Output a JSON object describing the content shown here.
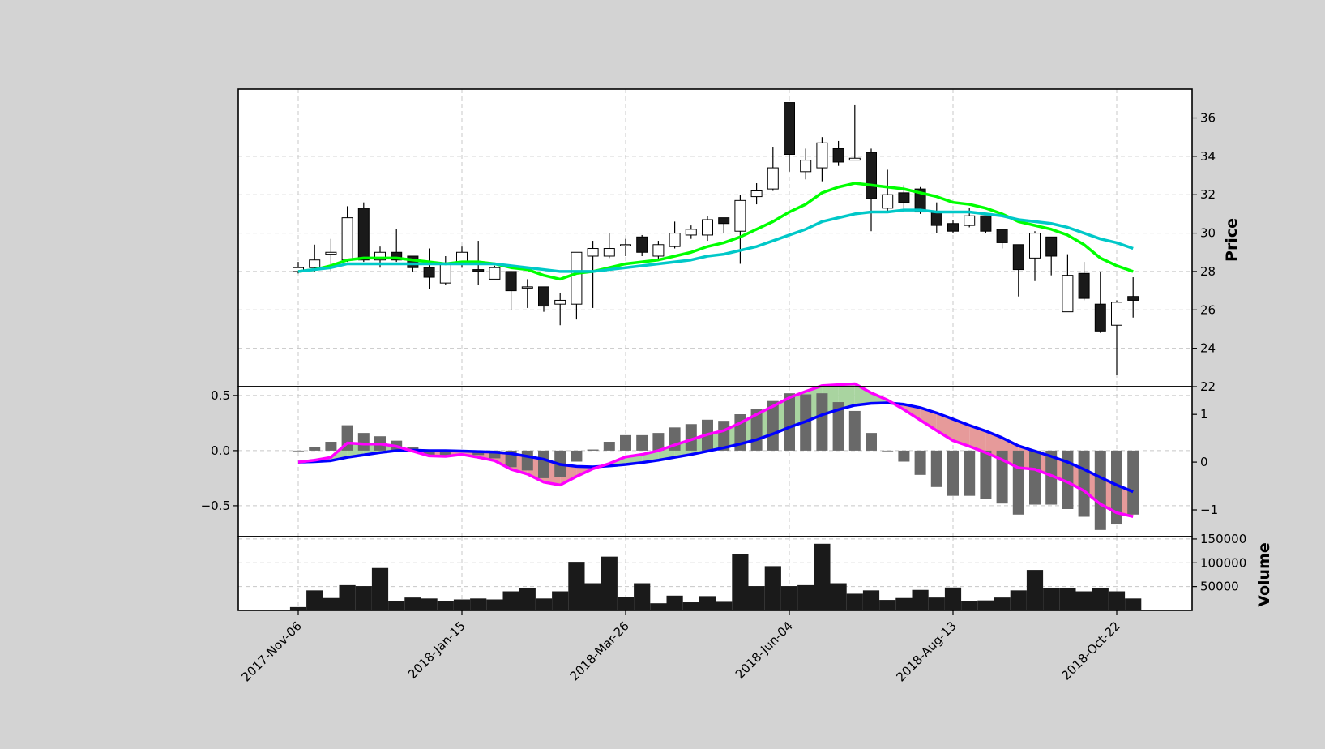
{
  "chart_data": {
    "type": "candlestick",
    "x_tick_labels": [
      "2017-Nov-06",
      "2018-Jan-15",
      "2018-Mar-26",
      "2018-Jun-04",
      "2018-Aug-13",
      "2018-Oct-22"
    ],
    "price_panel": {
      "ylabel": "Price",
      "ylim": [
        22,
        37.5
      ],
      "yticks": [
        "22",
        "24",
        "26",
        "28",
        "30",
        "32",
        "34",
        "36"
      ],
      "grid": true,
      "candles": [
        [
          28.0,
          28.2,
          28.5,
          27.9
        ],
        [
          28.2,
          28.6,
          29.4,
          28.0
        ],
        [
          28.9,
          29.0,
          29.7,
          28.0
        ],
        [
          28.6,
          30.8,
          31.4,
          28.5
        ],
        [
          31.3,
          28.6,
          31.6,
          28.5
        ],
        [
          28.6,
          29.0,
          29.3,
          28.2
        ],
        [
          29.0,
          28.6,
          30.2,
          28.5
        ],
        [
          28.8,
          28.2,
          28.8,
          28.0
        ],
        [
          28.2,
          27.7,
          29.2,
          27.1
        ],
        [
          27.4,
          28.4,
          28.8,
          27.3
        ],
        [
          28.4,
          29.0,
          29.3,
          28.2
        ],
        [
          28.1,
          28.0,
          29.6,
          27.3
        ],
        [
          27.6,
          28.2,
          28.3,
          27.6
        ],
        [
          28.0,
          27.0,
          28.0,
          26.0
        ],
        [
          27.2,
          27.2,
          27.6,
          26.1
        ],
        [
          27.2,
          26.2,
          27.2,
          25.9
        ],
        [
          26.3,
          26.5,
          26.9,
          25.2
        ],
        [
          26.3,
          29.0,
          29.0,
          25.5
        ],
        [
          28.8,
          29.2,
          29.6,
          26.1
        ],
        [
          28.8,
          29.2,
          30.0,
          28.7
        ],
        [
          29.4,
          29.4,
          29.7,
          28.8
        ],
        [
          29.8,
          29.0,
          29.9,
          28.8
        ],
        [
          28.8,
          29.4,
          29.6,
          28.6
        ],
        [
          29.3,
          30.0,
          30.6,
          29.2
        ],
        [
          29.9,
          30.2,
          30.4,
          29.7
        ],
        [
          29.9,
          30.7,
          30.9,
          29.6
        ],
        [
          30.8,
          30.5,
          30.8,
          30.0
        ],
        [
          30.1,
          31.7,
          32.0,
          28.4
        ],
        [
          31.9,
          32.2,
          32.6,
          31.5
        ],
        [
          32.3,
          33.4,
          34.5,
          32.2
        ],
        [
          36.8,
          34.1,
          36.8,
          33.2
        ],
        [
          33.2,
          33.8,
          34.4,
          32.8
        ],
        [
          33.4,
          34.7,
          35.0,
          32.7
        ],
        [
          34.4,
          33.7,
          34.8,
          33.5
        ],
        [
          33.8,
          33.9,
          36.7,
          33.8
        ],
        [
          34.2,
          31.8,
          34.4,
          30.1
        ],
        [
          31.3,
          32.0,
          33.3,
          31.1
        ],
        [
          32.1,
          31.6,
          32.5,
          31.1
        ],
        [
          32.3,
          31.1,
          32.4,
          31.0
        ],
        [
          31.1,
          30.4,
          31.6,
          30.0
        ],
        [
          30.5,
          30.1,
          30.7,
          30.0
        ],
        [
          30.4,
          30.9,
          31.3,
          30.3
        ],
        [
          30.9,
          30.1,
          30.9,
          30.0
        ],
        [
          30.2,
          29.5,
          30.2,
          29.2
        ],
        [
          29.4,
          28.1,
          29.4,
          26.7
        ],
        [
          28.7,
          30.0,
          30.1,
          27.5
        ],
        [
          29.8,
          28.8,
          29.8,
          27.8
        ],
        [
          25.9,
          27.8,
          28.9,
          25.9
        ],
        [
          27.9,
          26.6,
          28.5,
          26.5
        ],
        [
          26.3,
          24.9,
          28.0,
          24.8
        ],
        [
          25.2,
          26.4,
          26.5,
          22.6
        ],
        [
          26.7,
          26.5,
          27.7,
          25.6
        ]
      ],
      "ma_green": [
        28.0,
        28.1,
        28.3,
        28.6,
        28.7,
        28.7,
        28.7,
        28.6,
        28.5,
        28.4,
        28.5,
        28.5,
        28.4,
        28.2,
        28.1,
        27.8,
        27.6,
        27.9,
        28.0,
        28.2,
        28.4,
        28.5,
        28.6,
        28.8,
        29.0,
        29.3,
        29.5,
        29.8,
        30.2,
        30.6,
        31.1,
        31.5,
        32.1,
        32.4,
        32.6,
        32.5,
        32.4,
        32.3,
        32.1,
        31.9,
        31.6,
        31.5,
        31.3,
        31.0,
        30.6,
        30.4,
        30.2,
        29.9,
        29.4,
        28.7,
        28.3,
        28.0
      ],
      "ma_cyan": [
        28.0,
        28.1,
        28.2,
        28.4,
        28.4,
        28.4,
        28.4,
        28.4,
        28.4,
        28.4,
        28.4,
        28.4,
        28.4,
        28.3,
        28.2,
        28.1,
        28.0,
        28.0,
        28.0,
        28.1,
        28.2,
        28.3,
        28.4,
        28.5,
        28.6,
        28.8,
        28.9,
        29.1,
        29.3,
        29.6,
        29.9,
        30.2,
        30.6,
        30.8,
        31.0,
        31.1,
        31.1,
        31.2,
        31.2,
        31.1,
        31.1,
        31.1,
        31.0,
        30.9,
        30.7,
        30.6,
        30.5,
        30.3,
        30.0,
        29.7,
        29.5,
        29.2
      ],
      "colors": {
        "up_body": "#ffffff",
        "down_body": "#1a1a1a",
        "ma_green": "#00ff00",
        "ma_cyan": "#00c8c8"
      }
    },
    "macd_panel": {
      "left_ylim": [
        -0.78,
        0.58
      ],
      "left_yticks": [
        {
          "v": 0.5,
          "label": "0.5"
        },
        {
          "v": 0.0,
          "label": "0.0"
        },
        {
          "v": -0.5,
          "label": "−0.5"
        }
      ],
      "right_ylim": [
        -1.56,
        1.58
      ],
      "right_yticks": [
        {
          "v": 1,
          "label": "1"
        },
        {
          "v": 0,
          "label": "0"
        },
        {
          "v": -1,
          "label": "−1"
        }
      ],
      "histogram": [
        0.0,
        0.03,
        0.08,
        0.23,
        0.16,
        0.13,
        0.09,
        0.03,
        -0.05,
        -0.05,
        0.0,
        -0.04,
        -0.07,
        -0.15,
        -0.18,
        -0.25,
        -0.24,
        -0.1,
        0.01,
        0.08,
        0.14,
        0.14,
        0.16,
        0.21,
        0.24,
        0.28,
        0.27,
        0.33,
        0.38,
        0.45,
        0.52,
        0.51,
        0.52,
        0.44,
        0.36,
        0.16,
        0.0,
        -0.1,
        -0.22,
        -0.33,
        -0.41,
        -0.41,
        -0.44,
        -0.48,
        -0.58,
        -0.49,
        -0.49,
        -0.53,
        -0.6,
        -0.72,
        -0.67,
        -0.58
      ],
      "macd_line": [
        0.0,
        0.04,
        0.1,
        0.4,
        0.38,
        0.38,
        0.33,
        0.23,
        0.13,
        0.12,
        0.16,
        0.1,
        0.03,
        -0.15,
        -0.25,
        -0.42,
        -0.48,
        -0.3,
        -0.14,
        -0.03,
        0.11,
        0.16,
        0.24,
        0.36,
        0.47,
        0.58,
        0.66,
        0.82,
        1.0,
        1.17,
        1.35,
        1.48,
        1.6,
        1.62,
        1.64,
        1.45,
        1.3,
        1.1,
        0.88,
        0.66,
        0.45,
        0.33,
        0.2,
        0.05,
        -0.12,
        -0.15,
        -0.28,
        -0.42,
        -0.6,
        -0.88,
        -1.06,
        -1.14
      ],
      "signal_line": [
        0.0,
        0.01,
        0.03,
        0.1,
        0.15,
        0.2,
        0.24,
        0.25,
        0.24,
        0.24,
        0.23,
        0.22,
        0.21,
        0.18,
        0.12,
        0.06,
        -0.05,
        -0.09,
        -0.1,
        -0.08,
        -0.05,
        -0.01,
        0.04,
        0.1,
        0.16,
        0.23,
        0.3,
        0.38,
        0.47,
        0.59,
        0.73,
        0.85,
        0.99,
        1.1,
        1.19,
        1.23,
        1.24,
        1.21,
        1.14,
        1.03,
        0.9,
        0.77,
        0.65,
        0.51,
        0.34,
        0.23,
        0.12,
        0.0,
        -0.15,
        -0.32,
        -0.48,
        -0.62
      ],
      "colors": {
        "macd": "#ff00ff",
        "signal": "#0000ff",
        "hist": "#696969",
        "fill_pos": "#a9d4a0",
        "fill_neg": "#e69a9a"
      }
    },
    "volume_panel": {
      "ylabel": "Volume",
      "ylim": [
        0,
        155000
      ],
      "yticks": [
        {
          "v": 50000,
          "label": "50000"
        },
        {
          "v": 100000,
          "label": "100000"
        },
        {
          "v": 150000,
          "label": "150000"
        }
      ],
      "values": [
        7000,
        42000,
        26000,
        53000,
        51000,
        89000,
        20000,
        27000,
        25000,
        19000,
        23000,
        25000,
        23000,
        40000,
        46000,
        25000,
        40000,
        102000,
        57000,
        113000,
        28000,
        57000,
        15000,
        31000,
        17000,
        30000,
        18000,
        118000,
        51000,
        93000,
        51000,
        53000,
        140000,
        57000,
        35000,
        42000,
        22000,
        26000,
        43000,
        27000,
        48000,
        20000,
        21000,
        27000,
        42000,
        85000,
        47000,
        47000,
        40000,
        47000,
        40000,
        25000
      ],
      "color": "#1a1a1a"
    }
  }
}
